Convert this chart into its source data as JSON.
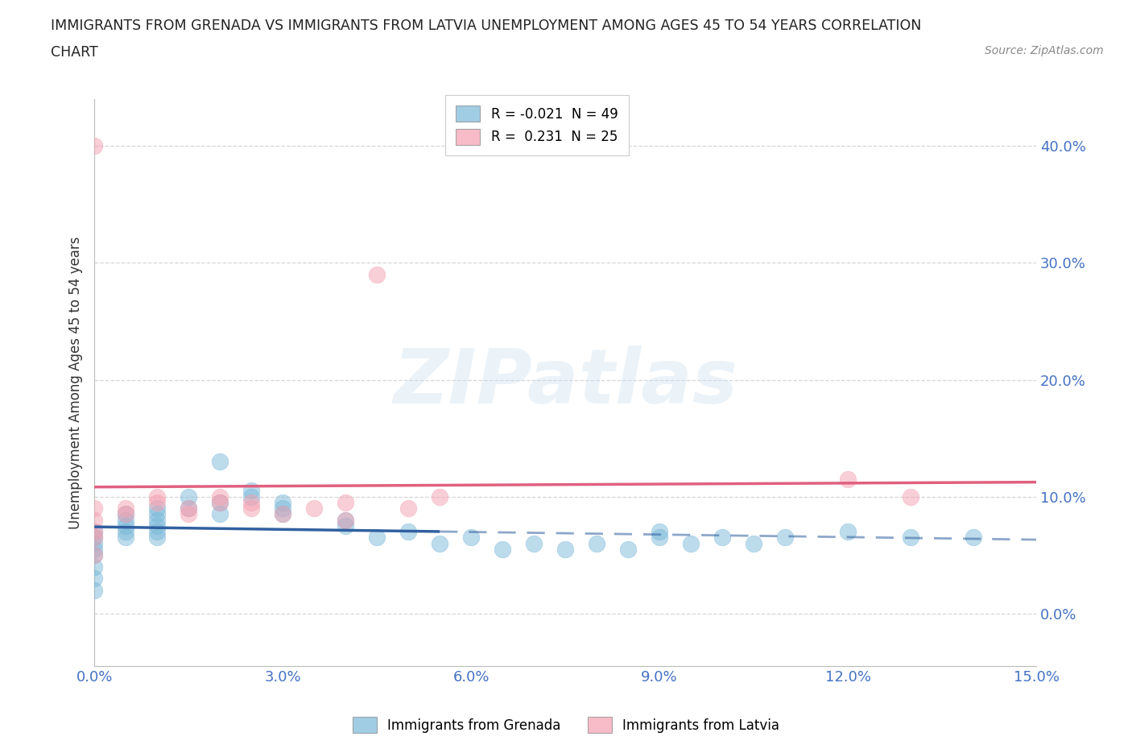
{
  "title_line1": "IMMIGRANTS FROM GRENADA VS IMMIGRANTS FROM LATVIA UNEMPLOYMENT AMONG AGES 45 TO 54 YEARS CORRELATION",
  "title_line2": "CHART",
  "source": "Source: ZipAtlas.com",
  "ylabel": "Unemployment Among Ages 45 to 54 years",
  "xlim": [
    0.0,
    0.15
  ],
  "ylim": [
    -0.045,
    0.44
  ],
  "xticks": [
    0.0,
    0.03,
    0.06,
    0.09,
    0.12,
    0.15
  ],
  "yticks": [
    0.0,
    0.1,
    0.2,
    0.3,
    0.4
  ],
  "grenada_color": "#7ab8d9",
  "latvia_color": "#f4a0b0",
  "grenada_line_color": "#3060a0",
  "latvia_line_color": "#e06080",
  "tick_color": "#4472c4",
  "grenada_R": -0.021,
  "grenada_N": 49,
  "latvia_R": 0.231,
  "latvia_N": 25,
  "legend_label_grenada": "Immigrants from Grenada",
  "legend_label_latvia": "Immigrants from Latvia",
  "watermark": "ZIPatlas",
  "grenada_x": [
    0.0,
    0.0,
    0.0,
    0.0,
    0.0,
    0.0,
    0.0,
    0.0,
    0.005,
    0.005,
    0.005,
    0.005,
    0.005,
    0.01,
    0.01,
    0.01,
    0.01,
    0.01,
    0.01,
    0.015,
    0.015,
    0.02,
    0.02,
    0.02,
    0.025,
    0.025,
    0.03,
    0.03,
    0.03,
    0.04,
    0.04,
    0.045,
    0.05,
    0.055,
    0.06,
    0.065,
    0.07,
    0.075,
    0.08,
    0.085,
    0.09,
    0.09,
    0.095,
    0.1,
    0.105,
    0.11,
    0.12,
    0.13,
    0.14
  ],
  "grenada_y": [
    0.04,
    0.05,
    0.055,
    0.06,
    0.065,
    0.07,
    0.03,
    0.02,
    0.07,
    0.075,
    0.08,
    0.085,
    0.065,
    0.085,
    0.09,
    0.08,
    0.075,
    0.07,
    0.065,
    0.09,
    0.1,
    0.095,
    0.085,
    0.13,
    0.1,
    0.105,
    0.09,
    0.095,
    0.085,
    0.075,
    0.08,
    0.065,
    0.07,
    0.06,
    0.065,
    0.055,
    0.06,
    0.055,
    0.06,
    0.055,
    0.07,
    0.065,
    0.06,
    0.065,
    0.06,
    0.065,
    0.07,
    0.065,
    0.065
  ],
  "latvia_x": [
    0.0,
    0.0,
    0.0,
    0.0,
    0.0,
    0.0,
    0.005,
    0.005,
    0.01,
    0.01,
    0.015,
    0.015,
    0.02,
    0.02,
    0.025,
    0.025,
    0.03,
    0.035,
    0.04,
    0.04,
    0.045,
    0.05,
    0.055,
    0.12,
    0.13
  ],
  "latvia_y": [
    0.4,
    0.07,
    0.08,
    0.065,
    0.09,
    0.05,
    0.09,
    0.085,
    0.1,
    0.095,
    0.09,
    0.085,
    0.1,
    0.095,
    0.095,
    0.09,
    0.085,
    0.09,
    0.095,
    0.08,
    0.29,
    0.09,
    0.1,
    0.115,
    0.1
  ]
}
